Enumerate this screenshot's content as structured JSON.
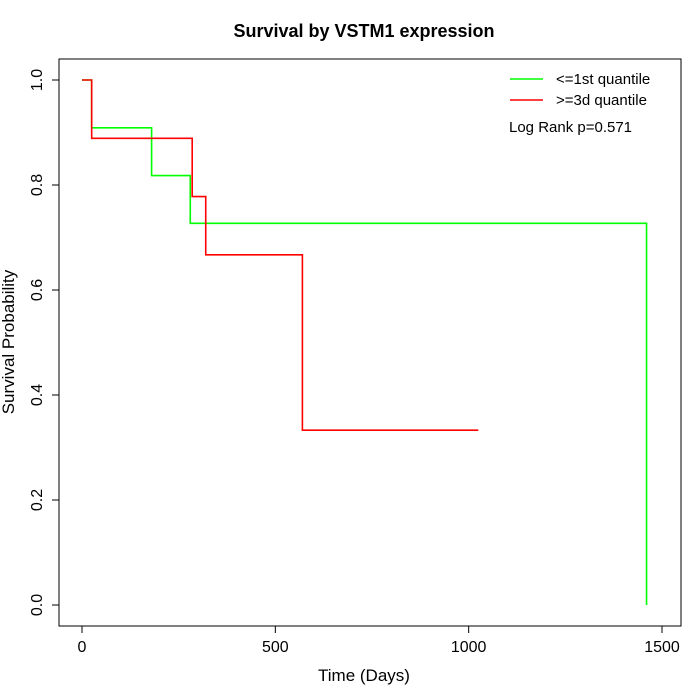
{
  "chart_data": {
    "type": "line",
    "title": "Survival by VSTM1 expression",
    "xlabel": "Time (Days)",
    "ylabel": "Survival Probability",
    "xlim": [
      0,
      1500
    ],
    "ylim": [
      0,
      1.0
    ],
    "x_ticks": [
      0,
      500,
      1000,
      1500
    ],
    "y_ticks": [
      0.0,
      0.2,
      0.4,
      0.6,
      0.8,
      1.0
    ],
    "x_tick_labels": [
      "0",
      "500",
      "1000",
      "1500"
    ],
    "y_tick_labels": [
      "0.0",
      "0.2",
      "0.4",
      "0.6",
      "0.8",
      "1.0"
    ],
    "grid": false,
    "legend_position": "top-right",
    "annotation": "Log Rank p=0.571",
    "series": [
      {
        "name": "<=1st quantile",
        "color": "#00ff00",
        "step": true,
        "points": [
          [
            0,
            1.0
          ],
          [
            25,
            0.909
          ],
          [
            180,
            0.818
          ],
          [
            280,
            0.727
          ],
          [
            1460,
            0.0
          ]
        ]
      },
      {
        "name": ">=3d quantile",
        "color": "#ff0000",
        "step": true,
        "points": [
          [
            0,
            1.0
          ],
          [
            25,
            0.889
          ],
          [
            285,
            0.778
          ],
          [
            320,
            0.667
          ],
          [
            570,
            0.333
          ],
          [
            1025,
            0.333
          ]
        ]
      }
    ]
  }
}
